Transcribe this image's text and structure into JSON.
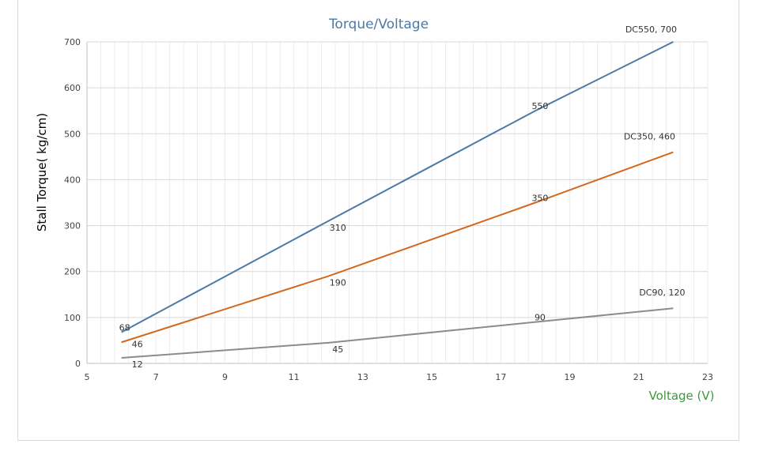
{
  "chart_data": {
    "type": "line",
    "title": "Torque/Voltage",
    "xlabel": "Voltage (V)",
    "ylabel": "Stall  Torque( kg/cm)",
    "xlim": [
      5,
      23
    ],
    "ylim": [
      0,
      700
    ],
    "xticks": [
      5,
      7,
      9,
      11,
      13,
      15,
      17,
      19,
      21,
      23
    ],
    "yticks": [
      0,
      100,
      200,
      300,
      400,
      500,
      600,
      700
    ],
    "grid": true,
    "series": [
      {
        "name": "DC550",
        "color": "#4a7aa6",
        "x": [
          6,
          12,
          18,
          22
        ],
        "y": [
          68,
          310,
          550,
          700
        ],
        "labels": [
          "68",
          "310",
          "550",
          "DC550, 700"
        ]
      },
      {
        "name": "DC350",
        "color": "#d2691e",
        "x": [
          6,
          12,
          18,
          22
        ],
        "y": [
          46,
          190,
          350,
          460
        ],
        "labels": [
          "46",
          "190",
          "350",
          "DC350, 460"
        ]
      },
      {
        "name": "DC90",
        "color": "#8c8c8c",
        "x": [
          6,
          12,
          18,
          22
        ],
        "y": [
          12,
          45,
          90,
          120
        ],
        "labels": [
          "12",
          "45",
          "90",
          "DC90, 120"
        ]
      }
    ],
    "colors": {
      "title": "#4a7aa6",
      "xlabel": "#3a9a3a",
      "ylabel": "#000000"
    }
  }
}
